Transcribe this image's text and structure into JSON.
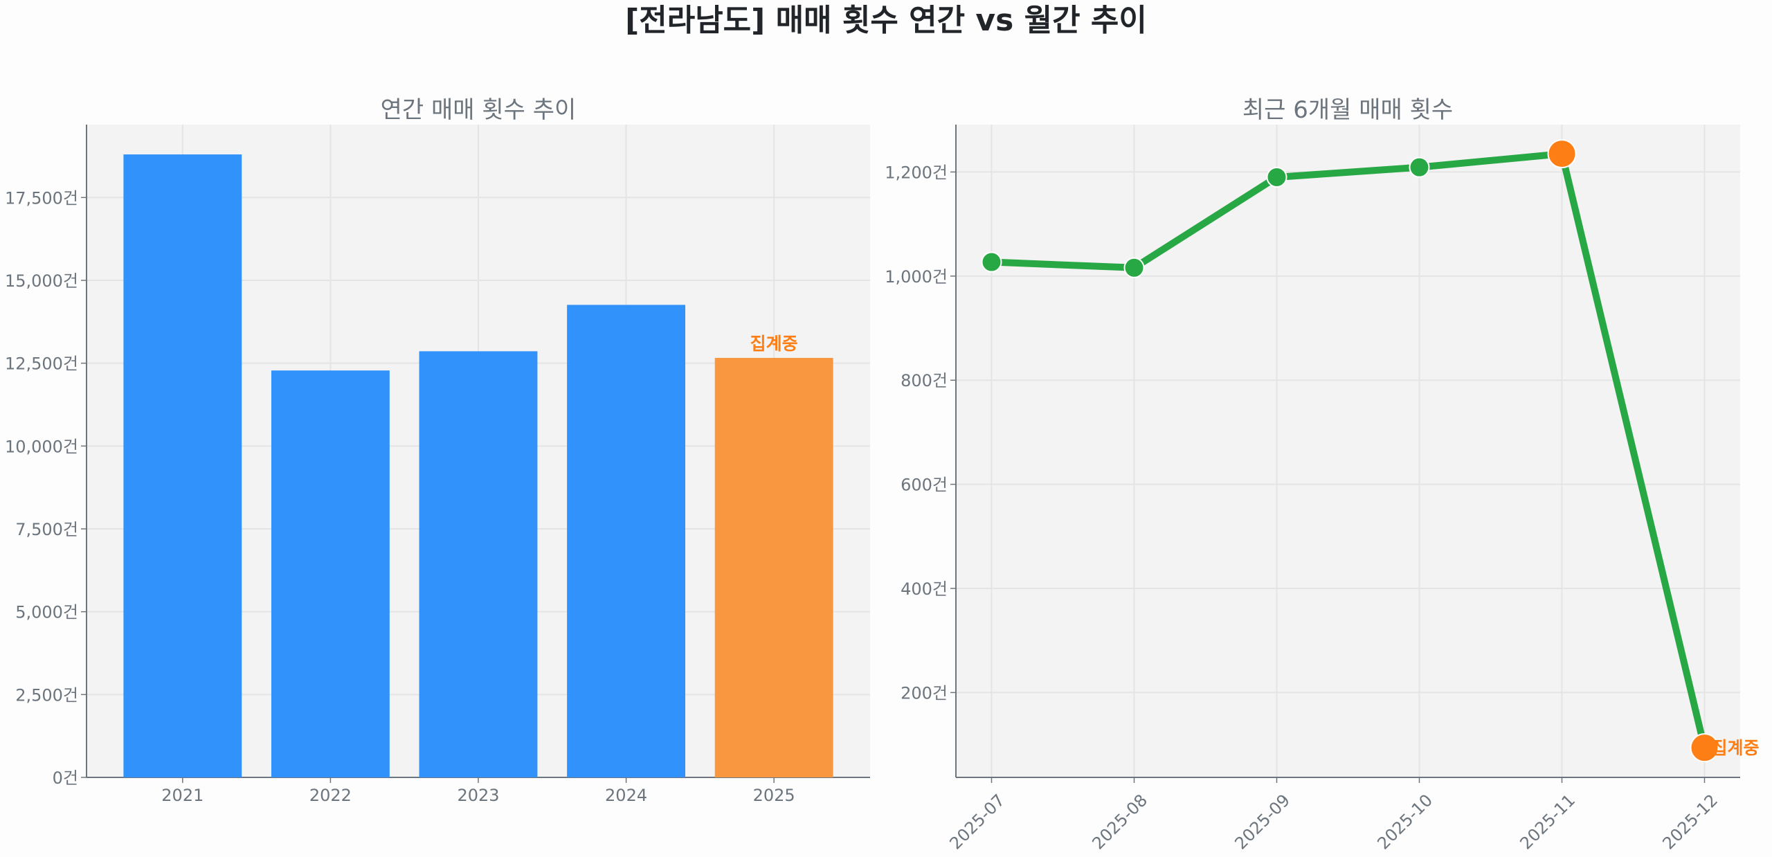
{
  "suptitle": "[전라남도] 매매 횟수 연간 vs 월간 추이",
  "colors": {
    "bar": "#3092fa",
    "bar_partial": "#f99740",
    "line": "#28a745",
    "marker_highlight": "#fd7e14",
    "annotation": "#fd7e14",
    "panel": "#f3f3f3",
    "text": "#6c757d"
  },
  "chart_data": [
    {
      "type": "bar",
      "title": "연간 매매 횟수 추이",
      "categories": [
        "2021",
        "2022",
        "2023",
        "2024",
        "2025"
      ],
      "values": [
        18800,
        12280,
        12860,
        14260,
        12660
      ],
      "partial_index": 4,
      "annotation": "집계중",
      "ylim": [
        0,
        19700
      ],
      "yticks": [
        0,
        2500,
        5000,
        7500,
        10000,
        12500,
        15000,
        17500
      ],
      "ytick_labels": [
        "0건",
        "2,500건",
        "5,000건",
        "7,500건",
        "10,000건",
        "12,500건",
        "15,000건",
        "17,500건"
      ],
      "grid": true
    },
    {
      "type": "line",
      "title": "최근 6개월 매매 횟수",
      "categories": [
        "2025-07",
        "2025-08",
        "2025-09",
        "2025-10",
        "2025-11",
        "2025-12"
      ],
      "values": [
        1027,
        1016,
        1190,
        1209,
        1235,
        94
      ],
      "highlight_indices": [
        4,
        5
      ],
      "annotation": "집계중",
      "ylim": [
        37,
        1291
      ],
      "yticks": [
        200,
        400,
        600,
        800,
        1000,
        1200
      ],
      "ytick_labels": [
        "200건",
        "400건",
        "600건",
        "800건",
        "1,000건",
        "1,200건"
      ],
      "grid": true
    }
  ]
}
